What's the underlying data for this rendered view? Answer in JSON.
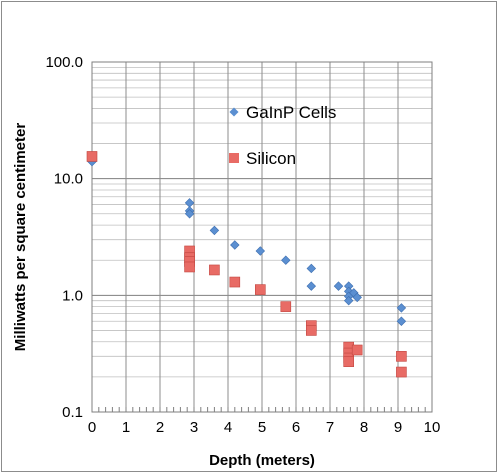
{
  "chart_data": {
    "type": "scatter",
    "title": "",
    "xlabel": "Depth (meters)",
    "ylabel": "Milliwatts per square centimeter",
    "xlim": [
      0,
      10
    ],
    "ylim": [
      0.1,
      100
    ],
    "y_scale": "log",
    "grid": true,
    "legend_position": "inside-top-center",
    "x_ticks": [
      "0",
      "1",
      "2",
      "3",
      "4",
      "5",
      "6",
      "7",
      "8",
      "9",
      "10"
    ],
    "y_ticks": [
      {
        "value": 0.1,
        "label": "0.1"
      },
      {
        "value": 1,
        "label": "1.0"
      },
      {
        "value": 10,
        "label": "10.0"
      },
      {
        "value": 100,
        "label": "100.0"
      }
    ],
    "series": [
      {
        "name": "GaInP Cells",
        "marker": "diamond",
        "color": "#5b8fd1",
        "points": [
          [
            0,
            14.0
          ],
          [
            2.87,
            6.2
          ],
          [
            2.87,
            5.3
          ],
          [
            2.87,
            5.0
          ],
          [
            3.6,
            3.6
          ],
          [
            4.2,
            2.7
          ],
          [
            4.95,
            2.4
          ],
          [
            5.7,
            2.0
          ],
          [
            6.45,
            1.7
          ],
          [
            6.45,
            1.2
          ],
          [
            7.25,
            1.2
          ],
          [
            7.55,
            1.2
          ],
          [
            7.55,
            1.08
          ],
          [
            7.55,
            0.98
          ],
          [
            7.55,
            0.9
          ],
          [
            7.7,
            1.05
          ],
          [
            7.8,
            0.96
          ],
          [
            9.1,
            0.78
          ],
          [
            9.1,
            0.6
          ]
        ]
      },
      {
        "name": "Silicon",
        "marker": "square",
        "color": "#e86b65",
        "points": [
          [
            0,
            15.5
          ],
          [
            2.87,
            2.4
          ],
          [
            2.87,
            2.1
          ],
          [
            2.87,
            1.95
          ],
          [
            2.87,
            1.75
          ],
          [
            3.6,
            1.65
          ],
          [
            4.2,
            1.3
          ],
          [
            4.95,
            1.12
          ],
          [
            5.7,
            0.8
          ],
          [
            6.45,
            0.55
          ],
          [
            6.45,
            0.5
          ],
          [
            7.55,
            0.36
          ],
          [
            7.55,
            0.32
          ],
          [
            7.55,
            0.29
          ],
          [
            7.55,
            0.27
          ],
          [
            7.8,
            0.34
          ],
          [
            9.1,
            0.3
          ],
          [
            9.1,
            0.22
          ]
        ]
      }
    ]
  }
}
